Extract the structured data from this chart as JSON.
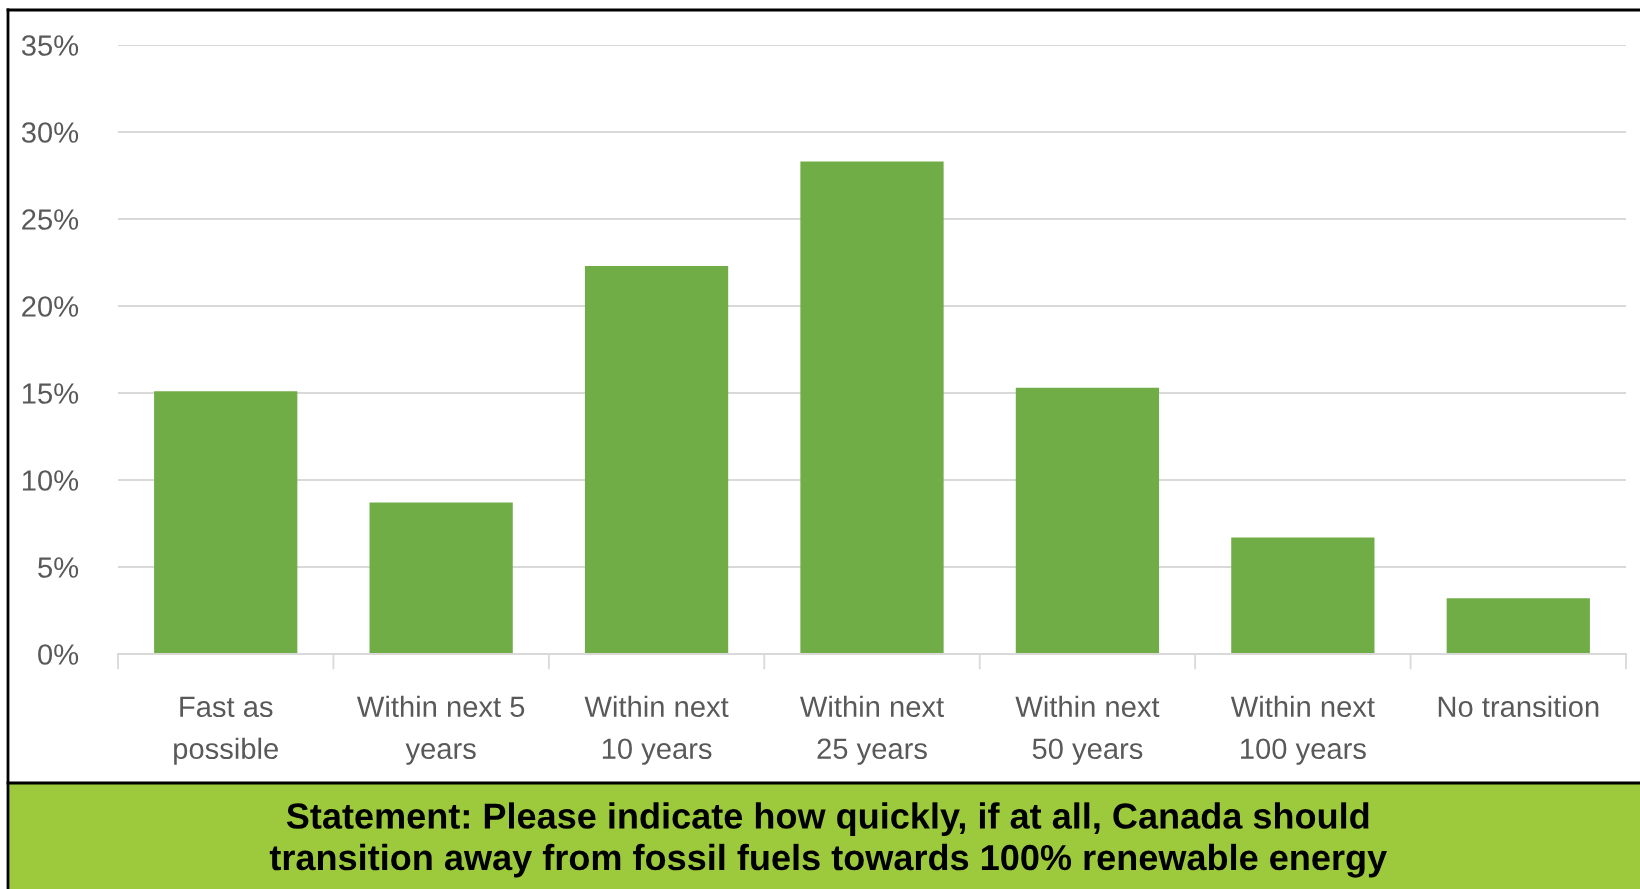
{
  "chart_data": {
    "type": "bar",
    "categories": [
      "Fast as\npossible",
      "Within next 5\nyears",
      "Within next\n10 years",
      "Within next\n25 years",
      "Within next\n50 years",
      "Within next\n100 years",
      "No transition"
    ],
    "values": [
      15.1,
      8.7,
      22.3,
      28.3,
      15.3,
      6.7,
      3.2
    ],
    "color": "#70ad47",
    "ylim": [
      0,
      35
    ],
    "yticks": [
      {
        "value": 0,
        "label": "0%"
      },
      {
        "value": 5,
        "label": "5%"
      },
      {
        "value": 10,
        "label": "10%"
      },
      {
        "value": 15,
        "label": "15%"
      },
      {
        "value": 20,
        "label": "20%"
      },
      {
        "value": 25,
        "label": "25%"
      },
      {
        "value": 30,
        "label": "30%"
      },
      {
        "value": 35,
        "label": "35%"
      }
    ],
    "grid": "y",
    "annotations": [
      "Statement: Please indicate how quickly, if at all, Canada should\ntransition away from fossil fuels towards 100% renewable energy"
    ]
  }
}
